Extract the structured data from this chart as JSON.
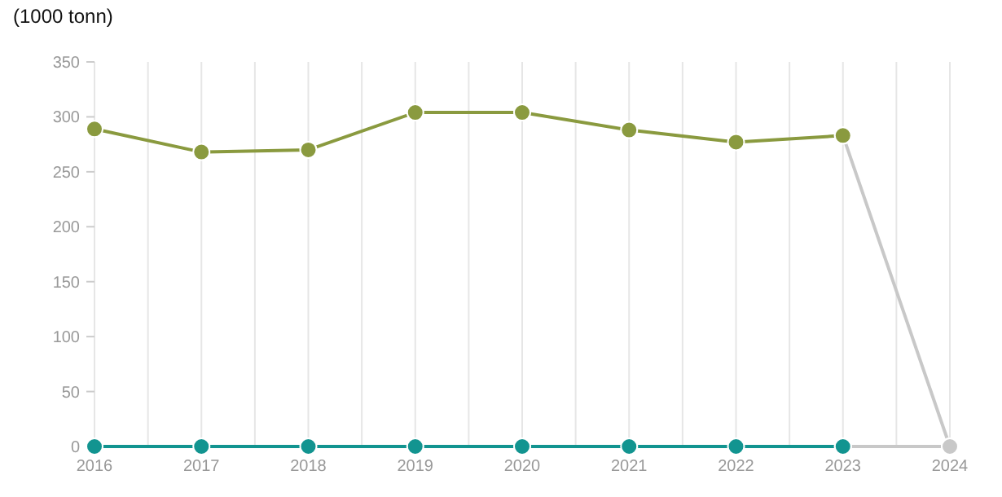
{
  "chart_data": {
    "type": "line",
    "ylabel": "(1000 tonn)",
    "x": [
      2016,
      2017,
      2018,
      2019,
      2020,
      2021,
      2022,
      2023,
      2024
    ],
    "xlim": [
      2016,
      2024
    ],
    "xticks": [
      2016,
      {
        "value": 2016.5,
        "label": null
      },
      2017,
      {
        "value": 2017.5,
        "label": null
      },
      2018,
      {
        "value": 2018.5,
        "label": null
      },
      2019,
      {
        "value": 2019.5,
        "label": null
      },
      2020,
      {
        "value": 2020.5,
        "label": null
      },
      2021,
      {
        "value": 2021.5,
        "label": null
      },
      2022,
      {
        "value": 2022.5,
        "label": null
      },
      2023,
      {
        "value": 2023.5,
        "label": null
      },
      2024
    ],
    "ylim": [
      0,
      350
    ],
    "yticks": [
      0,
      50,
      100,
      150,
      200,
      250,
      300,
      350
    ],
    "grid": "x",
    "marker": "circle",
    "line_style": "solid",
    "series": [
      {
        "color": "#c8c8c8",
        "values": [
          null,
          null,
          null,
          null,
          null,
          null,
          null,
          283,
          0
        ]
      },
      {
        "color": "#c8c8c8",
        "values": [
          null,
          null,
          null,
          null,
          null,
          null,
          null,
          0,
          0
        ]
      },
      {
        "color": "#8a9a3f",
        "values": [
          289,
          268,
          270,
          304,
          304,
          288,
          277,
          283,
          null
        ]
      },
      {
        "color": "#129490",
        "values": [
          0,
          0,
          0,
          0,
          0,
          0,
          0,
          0,
          null
        ]
      }
    ]
  }
}
